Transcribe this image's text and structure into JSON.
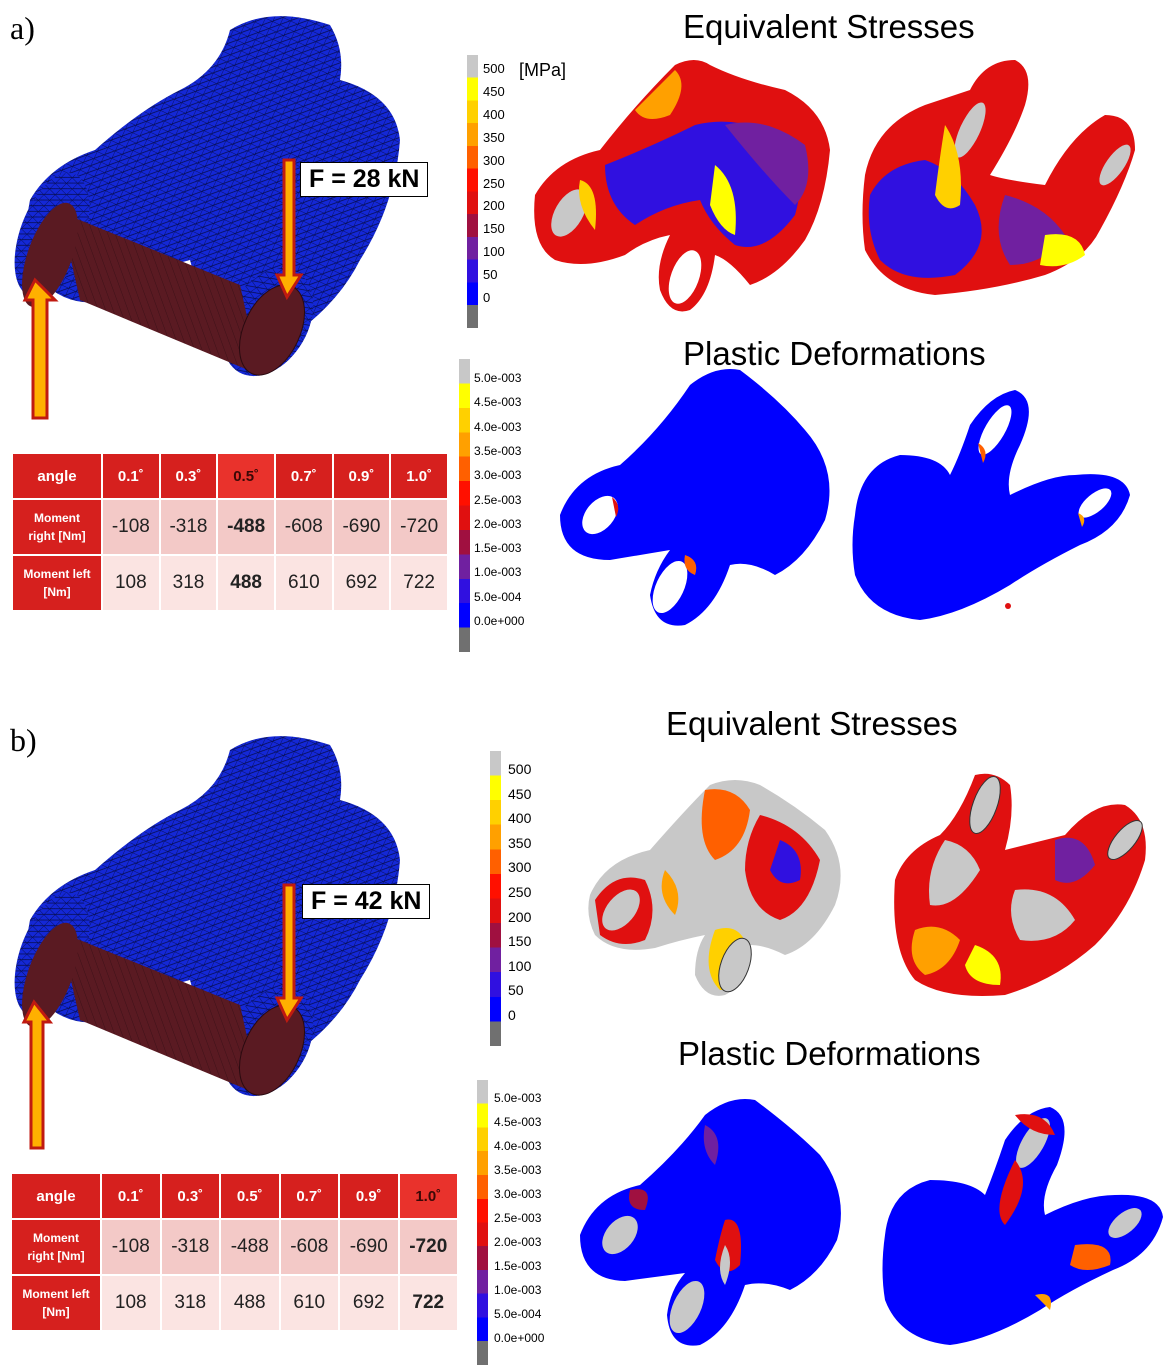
{
  "panels": [
    {
      "label": "a)",
      "force_label": "F = 28 kN",
      "stress_heading": "Equivalent Stresses",
      "plastic_heading": "Plastic Deformations",
      "stress_unit": "[MPa]",
      "stress_ticks": [
        "500",
        "450",
        "400",
        "350",
        "300",
        "250",
        "200",
        "150",
        "100",
        "50",
        "0"
      ],
      "plastic_ticks": [
        "5.0e-003",
        "4.5e-003",
        "4.0e-003",
        "3.5e-003",
        "3.0e-003",
        "2.5e-003",
        "2.0e-003",
        "1.5e-003",
        "1.0e-003",
        "5.0e-004",
        "0.0e+000"
      ],
      "table": {
        "corner": "angle",
        "angles": [
          "0.1˚",
          "0.3˚",
          "0.5˚",
          "0.7˚",
          "0.9˚",
          "1.0˚"
        ],
        "row1_label_a": "Moment",
        "row1_label_b": "right [Nm]",
        "row1": [
          "-108",
          "-318",
          "-488",
          "-608",
          "-690",
          "-720"
        ],
        "row2_label_a": "Moment left",
        "row2_label_b": "[Nm]",
        "row2": [
          "108",
          "318",
          "488",
          "610",
          "692",
          "722"
        ]
      }
    },
    {
      "label": "b)",
      "force_label": "F = 42 kN",
      "stress_heading": "Equivalent Stresses",
      "plastic_heading": "Plastic Deformations",
      "stress_ticks": [
        "500",
        "450",
        "400",
        "350",
        "300",
        "250",
        "200",
        "150",
        "100",
        "50",
        "0"
      ],
      "plastic_ticks": [
        "5.0e-003",
        "4.5e-003",
        "4.0e-003",
        "3.5e-003",
        "3.0e-003",
        "2.5e-003",
        "2.0e-003",
        "1.5e-003",
        "1.0e-003",
        "5.0e-004",
        "0.0e+000"
      ],
      "table": {
        "corner": "angle",
        "angles": [
          "0.1˚",
          "0.3˚",
          "0.5˚",
          "0.7˚",
          "0.9˚",
          "1.0˚"
        ],
        "row1_label_a": "Moment",
        "row1_label_b": "right [Nm]",
        "row1": [
          "-108",
          "-318",
          "-488",
          "-608",
          "-690",
          "-720"
        ],
        "row2_label_a": "Moment left",
        "row2_label_b": "[Nm]",
        "row2": [
          "108",
          "318",
          "488",
          "610",
          "692",
          "722"
        ]
      }
    }
  ],
  "colors": {
    "mesh_blue": "#1428d6",
    "pin": "#5a1a22",
    "arrow_fill": "#ffb000",
    "arrow_edge": "#c01a10",
    "table_header": "#d6201e",
    "scale_stops": [
      "#c8c8c8",
      "#ffff00",
      "#ffd000",
      "#ffa000",
      "#ff6000",
      "#ff1000",
      "#e01010",
      "#a01040",
      "#7020a0",
      "#3010e0",
      "#0000ff",
      "#707070"
    ]
  }
}
